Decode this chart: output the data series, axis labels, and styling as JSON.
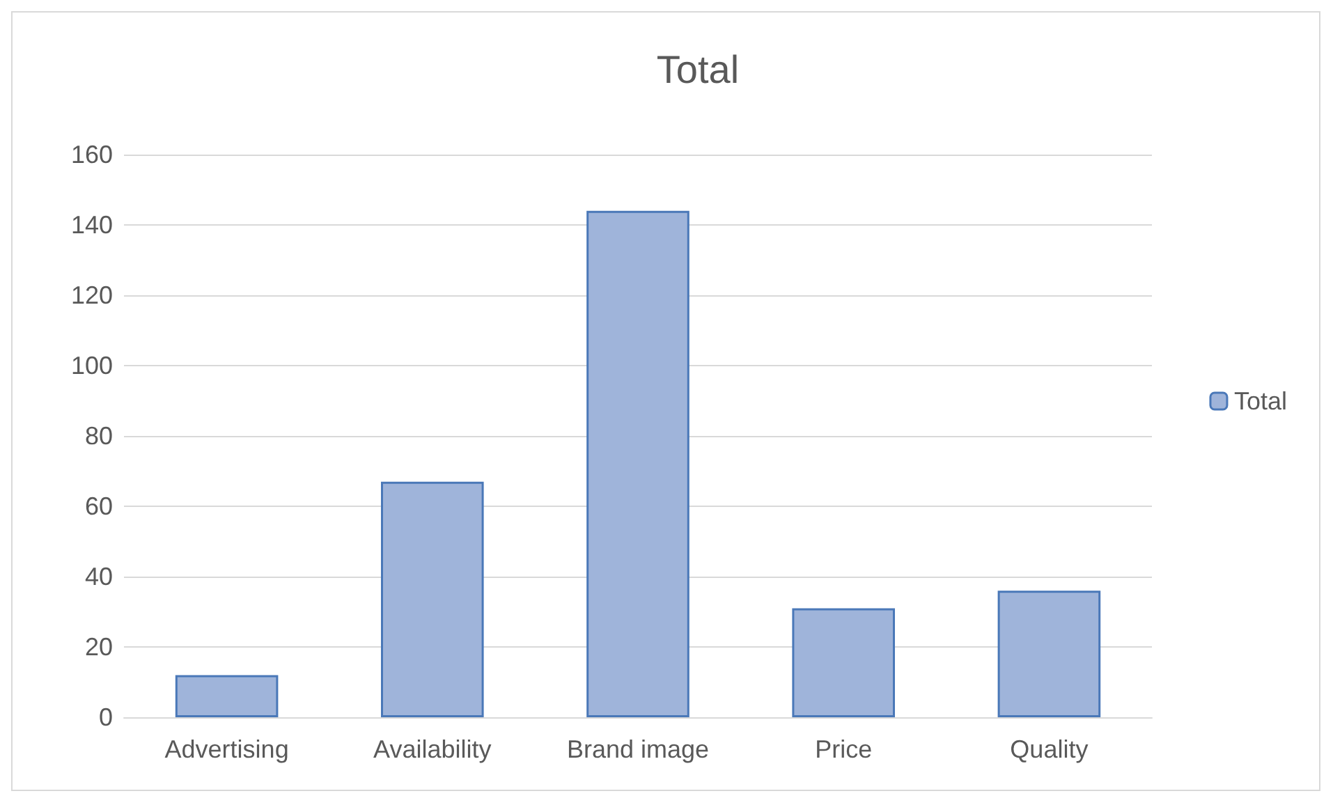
{
  "chart_data": {
    "type": "bar",
    "title": "Total",
    "categories": [
      "Advertising",
      "Availability",
      "Brand image",
      "Price",
      "Quality"
    ],
    "series": [
      {
        "name": "Total",
        "color": "#9fb4da",
        "values": [
          12,
          67,
          144,
          31,
          36
        ]
      }
    ],
    "ylim": [
      0,
      160
    ],
    "yticks": [
      0,
      20,
      40,
      60,
      80,
      100,
      120,
      140,
      160
    ],
    "grid": "y",
    "legend": "right"
  }
}
